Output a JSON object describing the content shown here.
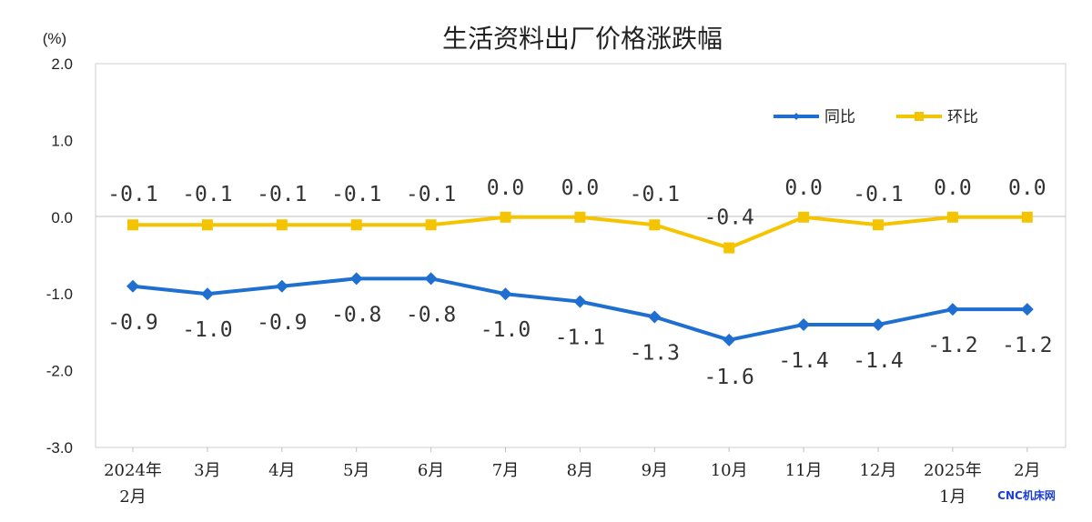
{
  "chart_data": {
    "type": "line",
    "title": "生活资料出厂价格涨跌幅",
    "ylabel": "(%)",
    "ylim": [
      -3.0,
      2.0
    ],
    "yticks": [
      "2.0",
      "1.0",
      "0.0",
      "-1.0",
      "-2.0",
      "-3.0"
    ],
    "categories": [
      [
        "2024年",
        "2月"
      ],
      [
        "3月"
      ],
      [
        "4月"
      ],
      [
        "5月"
      ],
      [
        "6月"
      ],
      [
        "7月"
      ],
      [
        "8月"
      ],
      [
        "9月"
      ],
      [
        "10月"
      ],
      [
        "11月"
      ],
      [
        "12月"
      ],
      [
        "2025年",
        "1月"
      ],
      [
        "2月"
      ]
    ],
    "series": [
      {
        "name": "同比",
        "color": "#1f6fd1",
        "marker": "diamond",
        "values": [
          -0.9,
          -1.0,
          -0.9,
          -0.8,
          -0.8,
          -1.0,
          -1.1,
          -1.3,
          -1.6,
          -1.4,
          -1.4,
          -1.2,
          -1.2
        ],
        "labels": [
          "-0.9",
          "-1.0",
          "-0.9",
          "-0.8",
          "-0.8",
          "-1.0",
          "-1.1",
          "-1.3",
          "-1.6",
          "-1.4",
          "-1.4",
          "-1.2",
          "-1.2"
        ]
      },
      {
        "name": "环比",
        "color": "#f5c400",
        "marker": "square",
        "values": [
          -0.1,
          -0.1,
          -0.1,
          -0.1,
          -0.1,
          0.0,
          0.0,
          -0.1,
          -0.4,
          0.0,
          -0.1,
          0.0,
          0.0
        ],
        "labels": [
          "-0.1",
          "-0.1",
          "-0.1",
          "-0.1",
          "-0.1",
          "0.0",
          "0.0",
          "-0.1",
          "-0.4",
          "0.0",
          "-0.1",
          "0.0",
          "0.0"
        ]
      }
    ],
    "legend_position": "top-right",
    "grid": false
  },
  "watermark": "CNC机床网"
}
